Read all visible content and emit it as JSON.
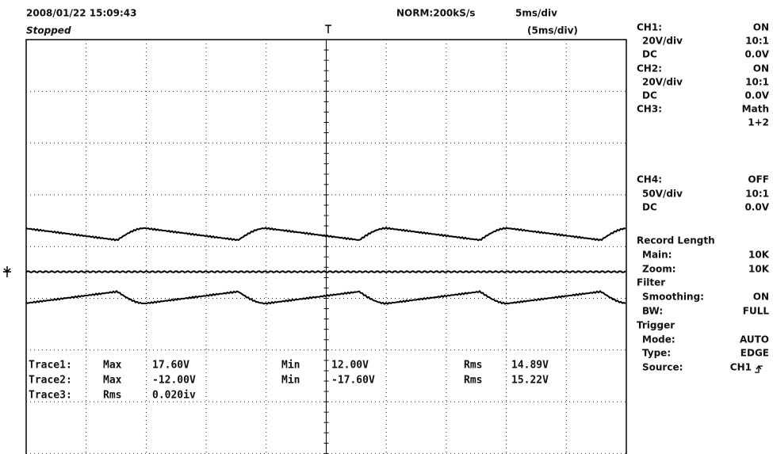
{
  "header": {
    "timestamp": "2008/01/22  15:09:43",
    "status": "Stopped",
    "acquisition": "NORM:200kS/s",
    "timebase": "5ms/div",
    "zoom_timebase": "(5ms/div)"
  },
  "panel": [
    {
      "label": "CH1:",
      "value": "ON"
    },
    {
      "label": "20V/div",
      "value": "10:1"
    },
    {
      "label": "DC",
      "value": "0.0V"
    },
    {
      "label": "CH2:",
      "value": "ON"
    },
    {
      "label": "20V/div",
      "value": "10:1"
    },
    {
      "label": "DC",
      "value": "0.0V"
    },
    {
      "label": "CH3:",
      "value": "Math"
    },
    {
      "value": "1+2"
    },
    {
      "label": "CH4:",
      "value": "OFF"
    },
    {
      "label": "50V/div",
      "value": "10:1"
    },
    {
      "label": "DC",
      "value": "0.0V"
    },
    {
      "label": "Record Length"
    },
    {
      "label": "Main:",
      "value": "10K"
    },
    {
      "label": "Zoom:",
      "value": "10K"
    },
    {
      "label": "Filter"
    },
    {
      "label": "Smoothing:",
      "value": "ON"
    },
    {
      "label": "BW:",
      "value": "FULL"
    },
    {
      "label": "Trigger"
    },
    {
      "label": "Mode:",
      "value": "AUTO"
    },
    {
      "label": "Type:",
      "value": "EDGE"
    },
    {
      "label": "Source:",
      "value": "CH1"
    }
  ],
  "measurements": {
    "rows": [
      [
        "Trace1:",
        "Max",
        "17.60V",
        "Min",
        "12.00V",
        "Rms",
        "14.89V"
      ],
      [
        "Trace2:",
        "Max",
        "-12.00V",
        "Min",
        "-17.60V",
        "Rms",
        "15.22V"
      ],
      [
        "Trace3:",
        "Rms",
        "0.020iv"
      ]
    ]
  }
}
